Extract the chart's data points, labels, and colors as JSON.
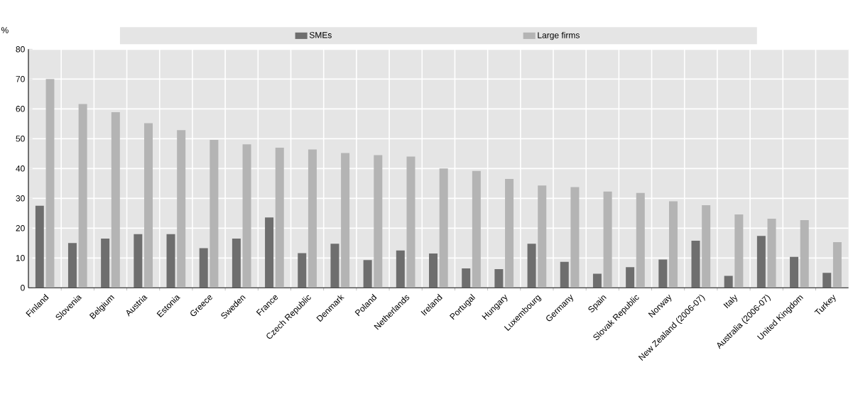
{
  "chart_data": {
    "type": "bar",
    "ylabel": "%",
    "categories": [
      "Finland",
      "Slovenia",
      "Belgium",
      "Austria",
      "Estonia",
      "Greece",
      "Sweden",
      "France",
      "Czech Republic",
      "Denmark",
      "Poland",
      "Netherlands",
      "Ireland",
      "Portugal",
      "Hungary",
      "Luxembourg",
      "Germany",
      "Spain",
      "Slovak Republic",
      "Norway",
      "New Zealand (2006-07)",
      "Italy",
      "Australia (2006-07)",
      "United Kingdom",
      "Turkey"
    ],
    "series": [
      {
        "name": "SMEs",
        "color": "#6e6e6e",
        "values": [
          27.5,
          15,
          16.5,
          18,
          18,
          13.3,
          16.5,
          23.6,
          11.6,
          14.8,
          9.3,
          12.5,
          11.5,
          6.5,
          6.3,
          14.8,
          8.7,
          4.7,
          6.9,
          9.5,
          15.8,
          4,
          17.4,
          10.4,
          5
        ]
      },
      {
        "name": "Large firms",
        "color": "#b4b4b4",
        "values": [
          70,
          61.6,
          58.9,
          55.2,
          52.9,
          49.6,
          48.1,
          47,
          46.4,
          45.2,
          44.5,
          44,
          40,
          39.2,
          36.5,
          34.3,
          33.8,
          32.3,
          31.8,
          29,
          27.7,
          24.6,
          23.2,
          22.7,
          15.3
        ]
      }
    ],
    "ylim": [
      0,
      80
    ],
    "yticks": [
      0,
      10,
      20,
      30,
      40,
      50,
      60,
      70,
      80
    ],
    "grid": true,
    "legend": "top"
  }
}
